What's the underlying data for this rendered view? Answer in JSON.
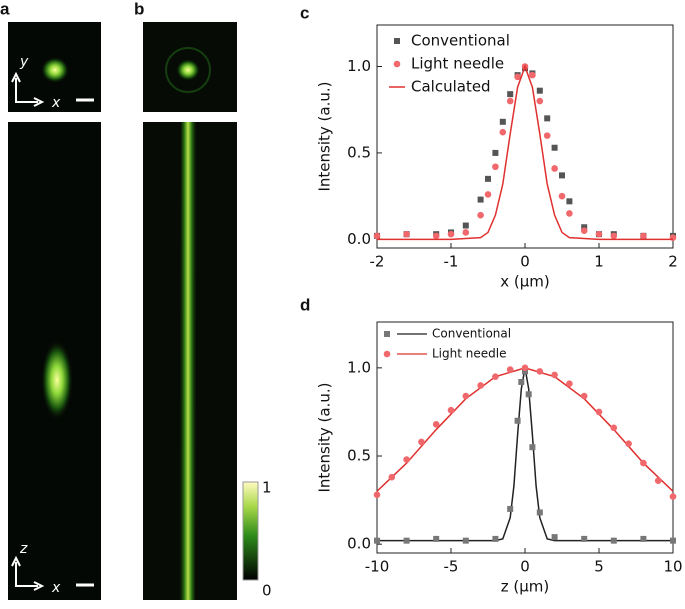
{
  "panels": {
    "a": {
      "label": "a",
      "top_axes": [
        "y",
        "x"
      ],
      "bottom_axes": [
        "z",
        "x"
      ]
    },
    "b": {
      "label": "b",
      "colorbar": [
        "1",
        "0"
      ]
    }
  },
  "chart_data": [
    {
      "type": "scatter",
      "panel": "c",
      "xlabel": "x (μm)",
      "ylabel": "Intensity (a.u.)",
      "xlim": [
        -2,
        2
      ],
      "xticks": [
        -2,
        -1,
        0,
        1,
        2
      ],
      "ylim": [
        -0.05,
        1.24
      ],
      "yticks": [
        {
          "value": 0,
          "label": "0.0"
        },
        {
          "value": 0.5,
          "label": "0.5"
        },
        {
          "value": 1,
          "label": "1.0"
        }
      ],
      "legend": "upper left",
      "series": [
        {
          "name": "Conventional",
          "style": "square",
          "color": "#555555",
          "x": [
            -2,
            -1.6,
            -1.2,
            -1,
            -0.8,
            -0.6,
            -0.5,
            -0.4,
            -0.3,
            -0.2,
            -0.1,
            0,
            0.1,
            0.2,
            0.3,
            0.4,
            0.5,
            0.6,
            0.8,
            1,
            1.2,
            1.6,
            2
          ],
          "values": [
            0.02,
            0.03,
            0.03,
            0.04,
            0.08,
            0.23,
            0.35,
            0.5,
            0.68,
            0.84,
            0.95,
            0.99,
            0.96,
            0.86,
            0.7,
            0.53,
            0.37,
            0.22,
            0.07,
            0.03,
            0.03,
            0.02,
            0.02
          ]
        },
        {
          "name": "Light needle",
          "style": "circle",
          "color": "#f0686c",
          "x": [
            -2,
            -1.6,
            -1.2,
            -1,
            -0.8,
            -0.6,
            -0.5,
            -0.4,
            -0.3,
            -0.2,
            -0.1,
            0,
            0.1,
            0.2,
            0.3,
            0.4,
            0.5,
            0.6,
            0.8,
            1,
            1.2,
            1.6,
            2
          ],
          "values": [
            0.02,
            0.03,
            0.02,
            0.03,
            0.04,
            0.14,
            0.26,
            0.42,
            0.62,
            0.8,
            0.94,
            1,
            0.95,
            0.8,
            0.6,
            0.41,
            0.25,
            0.15,
            0.05,
            0.03,
            0.02,
            0.02,
            0.01
          ]
        },
        {
          "name": "Calculated",
          "style": "line",
          "color": "#e0302f",
          "x": [
            -2,
            -1,
            -0.6,
            -0.5,
            -0.4,
            -0.3,
            -0.2,
            -0.1,
            0,
            0.1,
            0.2,
            0.3,
            0.4,
            0.5,
            0.6,
            1,
            2
          ],
          "values": [
            0,
            0,
            0.01,
            0.04,
            0.14,
            0.32,
            0.61,
            0.88,
            1,
            0.88,
            0.61,
            0.32,
            0.14,
            0.04,
            0.01,
            0,
            0
          ]
        }
      ]
    },
    {
      "type": "scatter",
      "panel": "d",
      "xlabel": "z (μm)",
      "ylabel": "Intensity (a.u.)",
      "xlim": [
        -10,
        10
      ],
      "xticks": [
        -10,
        -5,
        0,
        5,
        10
      ],
      "ylim": [
        -0.05,
        1.26
      ],
      "yticks": [
        {
          "value": 0,
          "label": "0.0"
        },
        {
          "value": 0.5,
          "label": "0.5"
        },
        {
          "value": 1,
          "label": "1.0"
        }
      ],
      "legend": "upper left",
      "series": [
        {
          "name": "Conventional",
          "style": "square",
          "color": "#777777",
          "x": [
            -10,
            -8,
            -6,
            -4,
            -2,
            -1,
            -0.5,
            -0.25,
            0,
            0.25,
            0.5,
            1,
            2,
            4,
            6,
            8,
            10
          ],
          "values": [
            0.02,
            0.02,
            0.03,
            0.02,
            0.03,
            0.2,
            0.7,
            0.92,
            0.98,
            0.85,
            0.55,
            0.18,
            0.04,
            0.03,
            0.02,
            0.03,
            0.02
          ],
          "fit": {
            "color": "#222222",
            "x": [
              -10,
              -2,
              -1.5,
              -1,
              -0.75,
              -0.5,
              -0.25,
              0,
              0.25,
              0.5,
              0.75,
              1,
              1.5,
              2,
              10
            ],
            "values": [
              0.02,
              0.02,
              0.03,
              0.15,
              0.33,
              0.62,
              0.88,
              1,
              0.88,
              0.62,
              0.33,
              0.15,
              0.03,
              0.02,
              0.02
            ]
          }
        },
        {
          "name": "Light needle",
          "style": "circle",
          "color": "#f0686c",
          "x": [
            -10,
            -9,
            -8,
            -7,
            -6,
            -5,
            -4,
            -3,
            -2,
            -1,
            0,
            1,
            2,
            3,
            4,
            5,
            6,
            7,
            8,
            9,
            10
          ],
          "values": [
            0.28,
            0.38,
            0.48,
            0.58,
            0.68,
            0.76,
            0.84,
            0.9,
            0.95,
            0.99,
            1,
            0.98,
            0.96,
            0.91,
            0.84,
            0.75,
            0.66,
            0.57,
            0.46,
            0.36,
            0.27
          ],
          "fit": {
            "color": "#e0302f",
            "x": [
              -10,
              -8,
              -6,
              -4,
              -2,
              0,
              2,
              4,
              6,
              8,
              10
            ],
            "values": [
              0.3,
              0.46,
              0.65,
              0.825,
              0.95,
              1,
              0.95,
              0.825,
              0.65,
              0.46,
              0.3
            ]
          }
        }
      ]
    }
  ]
}
